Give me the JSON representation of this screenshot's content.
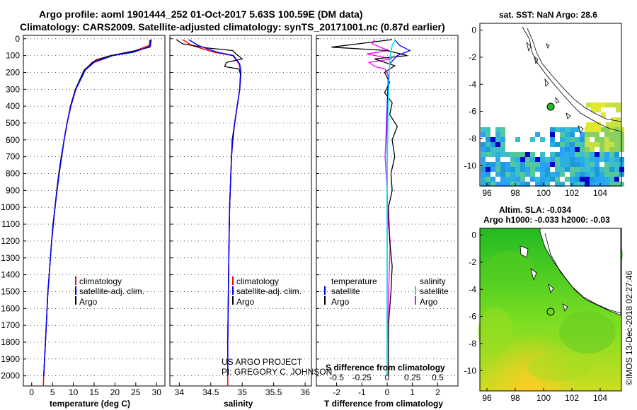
{
  "title_line1": "Argo profile: aoml 1901444_252 01-Oct-2017 5.63S 100.59E (DM data)",
  "title_line2": "Climatology: CARS2009. Satellite-adjusted climatology: synTS_20171001.nc (0.87d earlier)",
  "credit_line1": "US ARGO PROJECT",
  "credit_line2": "PI: GREGORY C. JOHNSON",
  "imos_stamp": "©IMOS 13-Dec-2018 02:27:46",
  "colors": {
    "climatology": "#ff0000",
    "satellite_clim": "#0000ff",
    "argo": "#000000",
    "sat_T": "#0000ff",
    "sat_S": "#00e5ff",
    "argo_S": "#ff00ff"
  },
  "depth_ticks": [
    "0",
    "100",
    "200",
    "300",
    "400",
    "500",
    "600",
    "700",
    "800",
    "900",
    "1000",
    "1100",
    "1200",
    "1300",
    "1400",
    "1500",
    "1600",
    "1700",
    "1800",
    "1900",
    "2000"
  ],
  "temp_panel": {
    "xlabel": "temperature (deg C)",
    "xticks": [
      "0",
      "5",
      "10",
      "15",
      "20",
      "25",
      "30"
    ],
    "legend": [
      "climatology",
      "satellite-adj. clim.",
      "Argo"
    ]
  },
  "sal_panel": {
    "xlabel": "salinity",
    "xticks": [
      "34",
      "34.5",
      "35",
      "35.5",
      "36"
    ],
    "legend": [
      "climatology",
      "satellite-adj. clim.",
      "Argo"
    ]
  },
  "diff_panel": {
    "xlabel": "T difference from climatology",
    "xlabel_top": "S difference from climatology",
    "xticks_T": [
      "-2",
      "-1",
      "0",
      "1",
      "2"
    ],
    "xticks_S": [
      "-0.5",
      "-0.25",
      "0",
      "0.25",
      "0.5"
    ],
    "legend_T_head": "temperature",
    "legend_S_head": "salinity",
    "legend_T": [
      "satellite",
      "Argo"
    ],
    "legend_S": [
      "satellite",
      "Argo"
    ]
  },
  "map_sst": {
    "title": "sat. SST: NaN Argo: 28.6",
    "xticks": [
      "96",
      "98",
      "100",
      "102",
      "104"
    ],
    "yticks": [
      "0",
      "-2",
      "-4",
      "-6",
      "-8",
      "-10"
    ]
  },
  "map_sla": {
    "title1": "Altim. SLA: -0.034",
    "title2": "Argo h1000: -0.033 h2000: -0.03",
    "xticks": [
      "96",
      "98",
      "100",
      "102",
      "104"
    ],
    "yticks": [
      "0",
      "-2",
      "-4",
      "-6",
      "-8",
      "-10"
    ]
  },
  "chart_data": [
    {
      "type": "line",
      "panel": "temperature",
      "ylabel": "",
      "xlabel": "temperature (deg C)",
      "xlim": [
        -2,
        32
      ],
      "ylim": [
        2060,
        -20
      ],
      "series": [
        {
          "name": "climatology",
          "points": [
            [
              28.4,
              5
            ],
            [
              28.2,
              40
            ],
            [
              24,
              80
            ],
            [
              19,
              100
            ],
            [
              14.5,
              140
            ],
            [
              12.8,
              185
            ],
            [
              11.7,
              240
            ],
            [
              10.6,
              300
            ],
            [
              9.4,
              400
            ],
            [
              8.5,
              500
            ],
            [
              7.8,
              600
            ],
            [
              7.2,
              700
            ],
            [
              6.6,
              800
            ],
            [
              6.1,
              900
            ],
            [
              5.6,
              1000
            ],
            [
              5.2,
              1100
            ],
            [
              4.8,
              1200
            ],
            [
              4.5,
              1300
            ],
            [
              4.2,
              1400
            ],
            [
              3.9,
              1500
            ],
            [
              3.7,
              1600
            ],
            [
              3.5,
              1700
            ],
            [
              3.3,
              1800
            ],
            [
              3.1,
              1900
            ],
            [
              2.9,
              2000
            ],
            [
              2.8,
              2060
            ]
          ]
        },
        {
          "name": "satellite-adj. clim.",
          "points": [
            [
              28.7,
              5
            ],
            [
              28.5,
              45
            ],
            [
              24.5,
              80
            ],
            [
              19.5,
              100
            ],
            [
              15,
              140
            ],
            [
              12.9,
              185
            ],
            [
              11.8,
              240
            ],
            [
              10.6,
              300
            ],
            [
              9.4,
              400
            ],
            [
              8.5,
              500
            ],
            [
              7.8,
              600
            ],
            [
              7.2,
              700
            ],
            [
              6.6,
              800
            ],
            [
              6.1,
              900
            ],
            [
              5.6,
              1000
            ],
            [
              5.2,
              1100
            ],
            [
              4.8,
              1200
            ],
            [
              4.5,
              1300
            ],
            [
              4.2,
              1400
            ],
            [
              3.9,
              1500
            ],
            [
              3.7,
              1600
            ],
            [
              3.5,
              1700
            ],
            [
              3.3,
              1800
            ],
            [
              3.1,
              1900
            ],
            [
              2.9,
              2000
            ]
          ]
        },
        {
          "name": "Argo",
          "points": [
            [
              28.6,
              5
            ],
            [
              28.4,
              50
            ],
            [
              25,
              70
            ],
            [
              19,
              100
            ],
            [
              15.5,
              125
            ],
            [
              12.6,
              185
            ],
            [
              11.6,
              240
            ],
            [
              10.5,
              300
            ],
            [
              9.3,
              400
            ],
            [
              8.5,
              500
            ],
            [
              7.8,
              600
            ],
            [
              7.1,
              700
            ],
            [
              6.5,
              800
            ],
            [
              6.0,
              900
            ],
            [
              5.6,
              1000
            ],
            [
              5.1,
              1100
            ],
            [
              4.8,
              1200
            ],
            [
              4.5,
              1300
            ],
            [
              4.2,
              1400
            ],
            [
              3.9,
              1500
            ],
            [
              3.7,
              1600
            ],
            [
              3.5,
              1700
            ],
            [
              3.3,
              1800
            ],
            [
              3.1,
              1900
            ],
            [
              2.9,
              2000
            ]
          ]
        }
      ]
    },
    {
      "type": "line",
      "panel": "salinity",
      "xlabel": "salinity",
      "xlim": [
        33.85,
        36.1
      ],
      "ylim": [
        2060,
        -20
      ],
      "series": [
        {
          "name": "climatology",
          "points": [
            [
              34.05,
              5
            ],
            [
              34.2,
              40
            ],
            [
              34.55,
              80
            ],
            [
              34.85,
              100
            ],
            [
              34.95,
              150
            ],
            [
              34.98,
              200
            ],
            [
              34.96,
              300
            ],
            [
              34.92,
              400
            ],
            [
              34.88,
              500
            ],
            [
              34.85,
              600
            ],
            [
              34.83,
              700
            ],
            [
              34.82,
              800
            ],
            [
              34.81,
              900
            ],
            [
              34.8,
              1000
            ],
            [
              34.79,
              1200
            ],
            [
              34.78,
              1500
            ],
            [
              34.77,
              1800
            ],
            [
              34.77,
              2060
            ]
          ]
        },
        {
          "name": "satellite-adj. clim.",
          "points": [
            [
              34.15,
              5
            ],
            [
              34.3,
              40
            ],
            [
              34.6,
              80
            ],
            [
              34.86,
              100
            ],
            [
              34.96,
              150
            ],
            [
              34.98,
              200
            ],
            [
              34.96,
              300
            ],
            [
              34.92,
              400
            ],
            [
              34.88,
              500
            ],
            [
              34.85,
              600
            ],
            [
              34.83,
              700
            ],
            [
              34.82,
              800
            ],
            [
              34.81,
              900
            ],
            [
              34.8,
              1000
            ],
            [
              34.79,
              1200
            ],
            [
              34.78,
              1500
            ],
            [
              34.77,
              1800
            ],
            [
              34.77,
              2000
            ]
          ]
        },
        {
          "name": "Argo",
          "points": [
            [
              33.95,
              5
            ],
            [
              34.05,
              30
            ],
            [
              34.45,
              55
            ],
            [
              34.85,
              70
            ],
            [
              34.9,
              90
            ],
            [
              35.0,
              120
            ],
            [
              34.75,
              140
            ],
            [
              34.72,
              165
            ],
            [
              34.95,
              180
            ],
            [
              34.97,
              210
            ],
            [
              34.96,
              300
            ],
            [
              34.92,
              400
            ],
            [
              34.88,
              500
            ],
            [
              34.84,
              600
            ],
            [
              34.83,
              700
            ],
            [
              34.82,
              800
            ],
            [
              34.81,
              900
            ],
            [
              34.8,
              1000
            ],
            [
              34.79,
              1200
            ],
            [
              34.78,
              1500
            ],
            [
              34.77,
              1800
            ],
            [
              34.77,
              2000
            ]
          ]
        }
      ]
    },
    {
      "type": "line",
      "panel": "difference",
      "xlabel": "T difference from climatology",
      "xlim": [
        -2.8,
        2.8
      ],
      "ylim": [
        2060,
        -20
      ],
      "series": [
        {
          "name": "satellite",
          "variable": "T",
          "points": [
            [
              0.3,
              5
            ],
            [
              0.5,
              40
            ],
            [
              0.9,
              70
            ],
            [
              0.4,
              100
            ],
            [
              0.1,
              150
            ],
            [
              0.05,
              250
            ],
            [
              0,
              400
            ],
            [
              0,
              700
            ],
            [
              0,
              1000
            ],
            [
              0,
              1500
            ],
            [
              0,
              2000
            ]
          ]
        },
        {
          "name": "Argo",
          "variable": "T",
          "points": [
            [
              0.2,
              5
            ],
            [
              -2.2,
              50
            ],
            [
              0,
              70
            ],
            [
              0.8,
              100
            ],
            [
              -0.5,
              120
            ],
            [
              0.3,
              160
            ],
            [
              -0.1,
              200
            ],
            [
              0.1,
              260
            ],
            [
              -0.1,
              320
            ],
            [
              0.2,
              380
            ],
            [
              0.1,
              450
            ],
            [
              0.4,
              520
            ],
            [
              0.2,
              600
            ],
            [
              0.3,
              700
            ],
            [
              0.15,
              800
            ],
            [
              0.2,
              900
            ],
            [
              0.05,
              1000
            ],
            [
              0.1,
              1200
            ],
            [
              0.2,
              1350
            ],
            [
              0.15,
              1500
            ],
            [
              0.05,
              1700
            ],
            [
              0.05,
              1900
            ],
            [
              0.05,
              2000
            ]
          ]
        },
        {
          "name": "satellite",
          "variable": "S",
          "points": [
            [
              0.08,
              5
            ],
            [
              0.05,
              40
            ],
            [
              0.03,
              100
            ],
            [
              0.02,
              200
            ],
            [
              0.01,
              400
            ],
            [
              0,
              800
            ],
            [
              0,
              1200
            ],
            [
              0,
              1600
            ],
            [
              0,
              2000
            ]
          ]
        },
        {
          "name": "Argo",
          "variable": "S",
          "points": [
            [
              -0.12,
              5
            ],
            [
              -0.15,
              30
            ],
            [
              -0.05,
              55
            ],
            [
              0.02,
              70
            ],
            [
              -0.2,
              90
            ],
            [
              0.05,
              120
            ],
            [
              -0.18,
              140
            ],
            [
              -0.12,
              165
            ],
            [
              -0.02,
              180
            ],
            [
              0.01,
              220
            ],
            [
              0,
              400
            ],
            [
              -0.02,
              700
            ],
            [
              0,
              900
            ],
            [
              0.01,
              1100
            ],
            [
              0.03,
              1200
            ],
            [
              0.02,
              1400
            ],
            [
              0.01,
              1600
            ],
            [
              0,
              1800
            ],
            [
              0,
              2000
            ]
          ]
        }
      ]
    }
  ]
}
